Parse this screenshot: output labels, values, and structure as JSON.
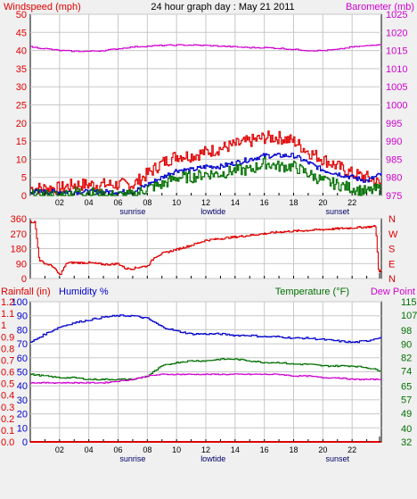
{
  "header": {
    "left_label": "Windspeed (mph)",
    "title": "24 hour graph day : May 21 2011",
    "right_label": "Barometer (mb)"
  },
  "colors": {
    "red": "#e00000",
    "blue": "#0000cc",
    "green": "#007000",
    "magenta": "#d000d0",
    "plot_bg": "#ffffff",
    "frame": "#000000"
  },
  "time_axis": {
    "hour_labels": [
      "02",
      "04",
      "06",
      "08",
      "10",
      "12",
      "14",
      "16",
      "18",
      "20",
      "22"
    ],
    "markers": [
      "sunrise",
      "lowtide",
      "sunset"
    ]
  },
  "chart_data": [
    {
      "id": "wind_baro",
      "type": "line",
      "ylim_left": [
        0,
        50
      ],
      "yticks_left": [
        0,
        5,
        10,
        15,
        20,
        25,
        30,
        35,
        40,
        45,
        50
      ],
      "ylim_right": [
        975,
        1025
      ],
      "yticks_right": [
        975,
        980,
        985,
        990,
        995,
        1000,
        1005,
        1010,
        1015,
        1020,
        1025
      ],
      "x_hours": [
        0,
        1,
        2,
        3,
        4,
        5,
        6,
        7,
        8,
        9,
        10,
        11,
        12,
        13,
        14,
        15,
        16,
        17,
        18,
        19,
        20,
        21,
        22,
        23,
        24
      ],
      "series": [
        {
          "name": "gust",
          "axis": "left",
          "color": "red",
          "values": [
            2,
            2,
            2,
            3,
            3,
            3,
            3,
            3,
            6,
            9,
            11,
            11,
            12,
            13,
            14,
            15,
            16,
            16,
            15,
            12,
            10,
            8,
            6,
            5,
            3
          ]
        },
        {
          "name": "average",
          "axis": "left",
          "color": "blue",
          "values": [
            1,
            1,
            1,
            1,
            1,
            1,
            1,
            1,
            3,
            5,
            7,
            7,
            8,
            8,
            9,
            10,
            11,
            11,
            11,
            9,
            7,
            6,
            5,
            4,
            6
          ]
        },
        {
          "name": "speed",
          "axis": "left",
          "color": "green",
          "values": [
            0,
            0,
            0,
            1,
            1,
            0,
            0,
            0,
            2,
            3,
            5,
            5,
            6,
            6,
            7,
            7,
            9,
            8,
            8,
            6,
            4,
            3,
            2,
            1,
            2
          ]
        },
        {
          "name": "barometer",
          "axis": "right",
          "color": "magenta",
          "values": [
            1016,
            1015.5,
            1015,
            1014.8,
            1014.8,
            1015,
            1015.5,
            1016,
            1016.2,
            1016.4,
            1016.5,
            1016.5,
            1016.4,
            1016.2,
            1016,
            1015.8,
            1015.8,
            1015.6,
            1015.3,
            1015,
            1015,
            1015.3,
            1016,
            1016.3,
            1016.8
          ]
        }
      ]
    },
    {
      "id": "wind_direction",
      "type": "line",
      "ylim": [
        0,
        360
      ],
      "yticks": [
        0,
        90,
        180,
        270,
        360
      ],
      "right_labels": [
        "N",
        "W",
        "S",
        "E",
        "N"
      ],
      "x_hours": [
        0,
        0.3,
        0.6,
        1,
        1.5,
        2,
        2.5,
        3,
        3.5,
        4,
        4.5,
        5,
        5.5,
        6,
        6.5,
        7,
        7.5,
        8,
        8.5,
        9,
        10,
        11,
        12,
        13,
        14,
        15,
        16,
        17,
        18,
        19,
        20,
        21,
        22,
        23,
        23.6,
        23.8,
        24
      ],
      "values": [
        340,
        340,
        110,
        90,
        75,
        20,
        95,
        95,
        95,
        95,
        90,
        85,
        85,
        90,
        60,
        60,
        70,
        75,
        130,
        150,
        175,
        200,
        230,
        240,
        250,
        260,
        270,
        280,
        285,
        290,
        295,
        300,
        305,
        310,
        315,
        40,
        50
      ],
      "color": "red"
    },
    {
      "id": "rain_hum_temp",
      "type": "line",
      "header": {
        "rain_label": "Rainfall (in)",
        "humidity_label": "Humidity %",
        "temp_label": "Temperature (°F)",
        "dew_label": "Dew Point"
      },
      "ylim_rain": [
        0,
        1.2
      ],
      "yticks_rain": [
        0,
        0.1,
        0.2,
        0.3,
        0.4,
        0.5,
        0.6,
        0.7,
        0.8,
        0.9,
        1,
        1.1,
        1.2
      ],
      "ytick_labels_rain": [
        "0.0",
        "0.1",
        "0.2",
        "0.3",
        "0.4",
        "0.5",
        "0.6",
        "0.7",
        "0.8",
        "0.9",
        "1",
        "1.1",
        "1.2"
      ],
      "ylim_humidity": [
        0,
        100
      ],
      "yticks_humidity": [
        0,
        10,
        20,
        30,
        40,
        50,
        60,
        70,
        80,
        90,
        100
      ],
      "ylim_temp": [
        32,
        115
      ],
      "yticks_temp": [
        32,
        40,
        49,
        57,
        65,
        74,
        82,
        90,
        98,
        107,
        115
      ],
      "x_hours": [
        0,
        1,
        2,
        3,
        4,
        5,
        6,
        7,
        8,
        9,
        10,
        11,
        12,
        13,
        14,
        15,
        16,
        17,
        18,
        19,
        20,
        21,
        22,
        23,
        24
      ],
      "series": [
        {
          "name": "Humidity",
          "scale": "humidity",
          "color": "blue",
          "values": [
            71,
            77,
            82,
            85,
            87,
            89,
            90,
            90,
            88,
            82,
            79,
            77,
            77,
            77,
            76,
            76,
            75,
            75,
            74,
            74,
            73,
            72,
            71,
            72,
            75
          ]
        },
        {
          "name": "Temperature",
          "scale": "temp",
          "color": "green",
          "values": [
            72,
            71,
            70,
            70,
            69,
            69,
            69,
            69,
            71,
            77,
            79,
            80,
            80,
            81,
            81,
            80,
            79,
            79,
            78,
            78,
            77,
            77,
            77,
            76,
            74
          ]
        },
        {
          "name": "Dew Point",
          "scale": "temp",
          "color": "magenta",
          "values": [
            67,
            67,
            67,
            67,
            67,
            67,
            68,
            69,
            71,
            72,
            72,
            72,
            72,
            72,
            72,
            72,
            72,
            72,
            71,
            71,
            70,
            70,
            69,
            69,
            69
          ]
        },
        {
          "name": "Rainfall",
          "scale": "rain",
          "color": "red",
          "values": [
            0,
            0,
            0,
            0,
            0,
            0,
            0,
            0,
            0,
            0,
            0,
            0,
            0,
            0,
            0,
            0,
            0,
            0,
            0,
            0,
            0,
            0,
            0,
            0,
            0
          ]
        }
      ]
    }
  ]
}
